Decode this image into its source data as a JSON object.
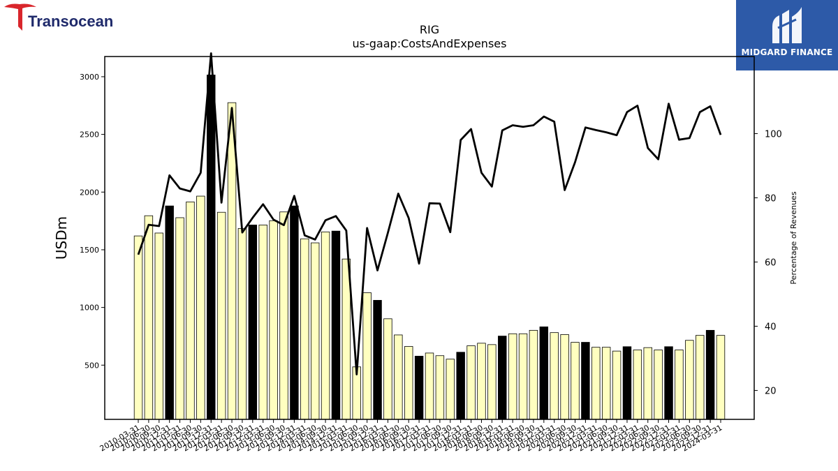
{
  "branding": {
    "left_logo_text": "Transocean",
    "right_logo_text": "MIDGARD FINANCE",
    "colors": {
      "transocean_red": "#d9262c",
      "transocean_navy": "#1f2a6b",
      "midgard_blue": "#2d5aa8"
    }
  },
  "chart_data": {
    "type": "bar",
    "title": "RIG",
    "subtitle": "us-gaap:CostsAndExpenses",
    "ylabel": "USDm",
    "y2label": "Percentage of Revenues",
    "ylim": [
      30,
      3175
    ],
    "y2lim": [
      11,
      124
    ],
    "yticks": [
      500,
      1000,
      1500,
      2000,
      2500,
      3000
    ],
    "y2ticks": [
      20,
      40,
      60,
      80,
      100
    ],
    "categories": [
      "2010-03-31",
      "2010-06-30",
      "2010-09-30",
      "2010-12-31",
      "2011-03-31",
      "2011-06-30",
      "2011-09-30",
      "2011-12-31",
      "2012-03-31",
      "2012-06-30",
      "2012-09-30",
      "2012-12-31",
      "2013-03-31",
      "2013-06-30",
      "2013-09-30",
      "2013-12-31",
      "2014-03-31",
      "2014-06-30",
      "2014-09-30",
      "2014-12-31",
      "2015-03-31",
      "2015-06-30",
      "2015-09-30",
      "2015-12-31",
      "2016-03-31",
      "2016-06-30",
      "2016-09-30",
      "2016-12-31",
      "2017-03-31",
      "2017-06-30",
      "2017-09-30",
      "2017-12-31",
      "2018-03-31",
      "2018-06-30",
      "2018-09-30",
      "2018-12-31",
      "2019-03-31",
      "2019-06-30",
      "2019-09-30",
      "2019-12-31",
      "2020-03-31",
      "2020-06-30",
      "2020-09-30",
      "2020-12-31",
      "2021-03-31",
      "2021-06-30",
      "2021-09-30",
      "2021-12-31",
      "2022-03-31",
      "2022-06-30",
      "2022-09-30",
      "2022-12-31",
      "2023-03-31",
      "2023-06-30",
      "2023-09-30",
      "2023-12-31",
      "2024-03-31"
    ],
    "series": [
      {
        "type": "bar",
        "values": [
          1620,
          1795,
          1645,
          1880,
          1778,
          1915,
          1965,
          3015,
          1825,
          2775,
          1685,
          1715,
          1715,
          1752,
          1828,
          1880,
          1595,
          1560,
          1655,
          1662,
          1420,
          485,
          1128,
          1062,
          902,
          762,
          662,
          578,
          605,
          582,
          552,
          612,
          668,
          690,
          678,
          752,
          772,
          772,
          802,
          832,
          782,
          765,
          698,
          698,
          655,
          655,
          622,
          660,
          632,
          652,
          632,
          660,
          632,
          715,
          758,
          802,
          758
        ],
        "highlight_flags": [
          0,
          0,
          0,
          1,
          0,
          0,
          0,
          1,
          0,
          0,
          0,
          1,
          0,
          0,
          0,
          1,
          0,
          0,
          0,
          1,
          0,
          0,
          0,
          1,
          0,
          0,
          0,
          1,
          0,
          0,
          0,
          1,
          0,
          0,
          0,
          1,
          0,
          0,
          0,
          1,
          0,
          0,
          0,
          1,
          0,
          0,
          0,
          1,
          0,
          0,
          0,
          1,
          0,
          0,
          0,
          1,
          0
        ],
        "colors": {
          "normal": "#ffffc0",
          "highlight": "#000000",
          "edge": "#000000"
        }
      },
      {
        "type": "line",
        "axis": "right",
        "values": [
          62.3,
          71.6,
          71.2,
          87.0,
          82.9,
          82.0,
          87.8,
          125.0,
          78.5,
          108.0,
          69.2,
          73.8,
          78.0,
          73.2,
          71.5,
          80.6,
          68.3,
          67.0,
          73.0,
          74.3,
          69.8,
          25.0,
          70.6,
          57.4,
          69.1,
          81.3,
          73.7,
          59.5,
          78.3,
          78.2,
          69.3,
          98.0,
          101.4,
          87.8,
          83.5,
          101.0,
          102.6,
          102.1,
          102.6,
          105.3,
          103.7,
          82.4,
          91.1,
          101.9,
          101.1,
          100.4,
          99.5,
          106.7,
          108.7,
          95.5,
          92.0,
          109.3,
          98.1,
          98.6,
          106.7,
          108.5,
          99.6
        ],
        "color": "#000000"
      }
    ],
    "grid": false,
    "legend": "none"
  }
}
